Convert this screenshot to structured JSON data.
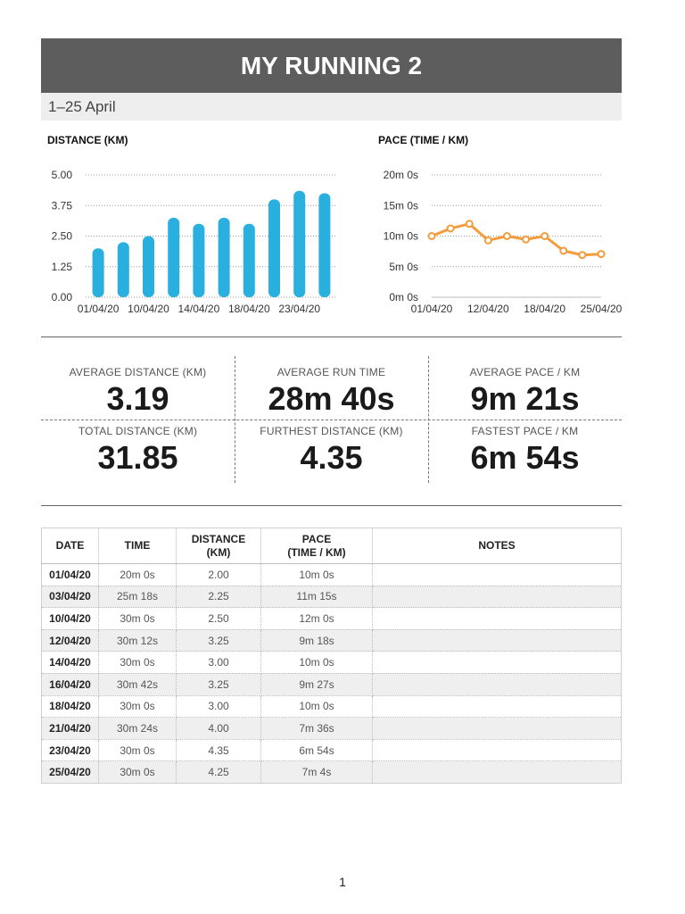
{
  "header": {
    "title": "MY RUNNING 2",
    "date_range": "1–25 April"
  },
  "colors": {
    "distance_bar": "#2ab0de",
    "pace_line": "#f39c3c",
    "header_bg": "#5d5d5d"
  },
  "chart_data": [
    {
      "type": "bar",
      "title": "DISTANCE (KM)",
      "categories": [
        "01/04/20",
        "03/04/20",
        "10/04/20",
        "12/04/20",
        "14/04/20",
        "16/04/20",
        "18/04/20",
        "21/04/20",
        "23/04/20",
        "25/04/20"
      ],
      "values": [
        2.0,
        2.25,
        2.5,
        3.25,
        3.0,
        3.25,
        3.0,
        4.0,
        4.35,
        4.25
      ],
      "x_tick_labels": [
        "01/04/20",
        "10/04/20",
        "14/04/20",
        "18/04/20",
        "23/04/20"
      ],
      "y_tick_labels": [
        "0.00",
        "1.25",
        "2.50",
        "3.75",
        "5.00"
      ],
      "ylim": [
        0,
        5
      ],
      "grid": true
    },
    {
      "type": "line",
      "title": "PACE (TIME / KM)",
      "categories": [
        "01/04/20",
        "03/04/20",
        "10/04/20",
        "12/04/20",
        "14/04/20",
        "16/04/20",
        "18/04/20",
        "21/04/20",
        "23/04/20",
        "25/04/20"
      ],
      "values_seconds": [
        600,
        675,
        720,
        558,
        600,
        567,
        600,
        456,
        414,
        424
      ],
      "x_tick_labels": [
        "01/04/20",
        "12/04/20",
        "18/04/20",
        "25/04/20"
      ],
      "y_tick_labels": [
        "0m 0s",
        "5m 0s",
        "10m 0s",
        "15m 0s",
        "20m 0s"
      ],
      "ylim": [
        0,
        1200
      ],
      "grid": true
    }
  ],
  "stats": {
    "avg_distance": {
      "label": "AVERAGE DISTANCE (KM)",
      "value": "3.19"
    },
    "avg_run_time": {
      "label": "AVERAGE RUN TIME",
      "value": "28m 40s"
    },
    "avg_pace": {
      "label": "AVERAGE PACE / KM",
      "value": "9m 21s"
    },
    "total_distance": {
      "label": "TOTAL DISTANCE (KM)",
      "value": "31.85"
    },
    "furthest_distance": {
      "label": "FURTHEST DISTANCE (KM)",
      "value": "4.35"
    },
    "fastest_pace": {
      "label": "FASTEST PACE / KM",
      "value": "6m 54s"
    }
  },
  "table": {
    "headers": {
      "date": "DATE",
      "time": "TIME",
      "distance_1": "DISTANCE",
      "distance_2": "(KM)",
      "pace_1": "PACE",
      "pace_2": "(TIME / KM)",
      "notes": "NOTES"
    },
    "rows": [
      {
        "date": "01/04/20",
        "time": "20m 0s",
        "distance": "2.00",
        "pace": "10m 0s",
        "notes": ""
      },
      {
        "date": "03/04/20",
        "time": "25m 18s",
        "distance": "2.25",
        "pace": "11m 15s",
        "notes": ""
      },
      {
        "date": "10/04/20",
        "time": "30m 0s",
        "distance": "2.50",
        "pace": "12m 0s",
        "notes": ""
      },
      {
        "date": "12/04/20",
        "time": "30m 12s",
        "distance": "3.25",
        "pace": "9m 18s",
        "notes": ""
      },
      {
        "date": "14/04/20",
        "time": "30m 0s",
        "distance": "3.00",
        "pace": "10m 0s",
        "notes": ""
      },
      {
        "date": "16/04/20",
        "time": "30m 42s",
        "distance": "3.25",
        "pace": "9m 27s",
        "notes": ""
      },
      {
        "date": "18/04/20",
        "time": "30m 0s",
        "distance": "3.00",
        "pace": "10m 0s",
        "notes": ""
      },
      {
        "date": "21/04/20",
        "time": "30m 24s",
        "distance": "4.00",
        "pace": "7m 36s",
        "notes": ""
      },
      {
        "date": "23/04/20",
        "time": "30m 0s",
        "distance": "4.35",
        "pace": "6m 54s",
        "notes": ""
      },
      {
        "date": "25/04/20",
        "time": "30m 0s",
        "distance": "4.25",
        "pace": "7m 4s",
        "notes": ""
      }
    ]
  },
  "page_number": "1"
}
